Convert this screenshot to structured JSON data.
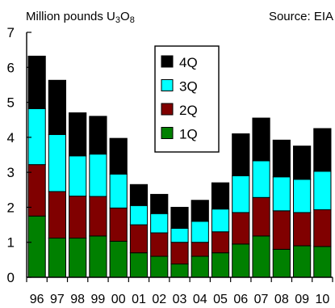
{
  "header": {
    "units_prefix": "Million pounds U",
    "units_sub1": "3",
    "units_mid": "O",
    "units_sub2": "8",
    "source": "Source: EIA"
  },
  "chart_data": {
    "type": "bar",
    "stacked": true,
    "categories": [
      "96",
      "97",
      "98",
      "99",
      "00",
      "01",
      "02",
      "03",
      "04",
      "05",
      "06",
      "07",
      "08",
      "09",
      "10"
    ],
    "ylim": [
      0,
      7
    ],
    "yticks": [
      0,
      1,
      2,
      3,
      4,
      5,
      6,
      7
    ],
    "grid": false,
    "legend_position": "top-center",
    "series": [
      {
        "name": "1Q",
        "color": "#008000",
        "values": [
          1.75,
          1.12,
          1.12,
          1.18,
          1.03,
          0.7,
          0.6,
          0.38,
          0.6,
          0.7,
          0.95,
          1.18,
          0.8,
          0.9,
          0.88
        ]
      },
      {
        "name": "2Q",
        "color": "#800000",
        "values": [
          1.47,
          1.33,
          1.2,
          1.13,
          0.95,
          0.8,
          0.67,
          0.62,
          0.4,
          0.6,
          0.9,
          1.1,
          1.1,
          0.95,
          1.05
        ]
      },
      {
        "name": "3Q",
        "color": "#00FFFF",
        "values": [
          1.6,
          1.63,
          1.15,
          1.21,
          0.97,
          0.55,
          0.55,
          0.4,
          0.6,
          0.65,
          1.05,
          1.05,
          0.97,
          0.95,
          1.1
        ]
      },
      {
        "name": "4Q",
        "color": "#000000",
        "values": [
          1.5,
          1.55,
          1.23,
          1.08,
          1.02,
          0.6,
          0.55,
          0.6,
          0.6,
          0.75,
          1.2,
          1.22,
          1.05,
          0.95,
          1.22
        ]
      }
    ]
  }
}
